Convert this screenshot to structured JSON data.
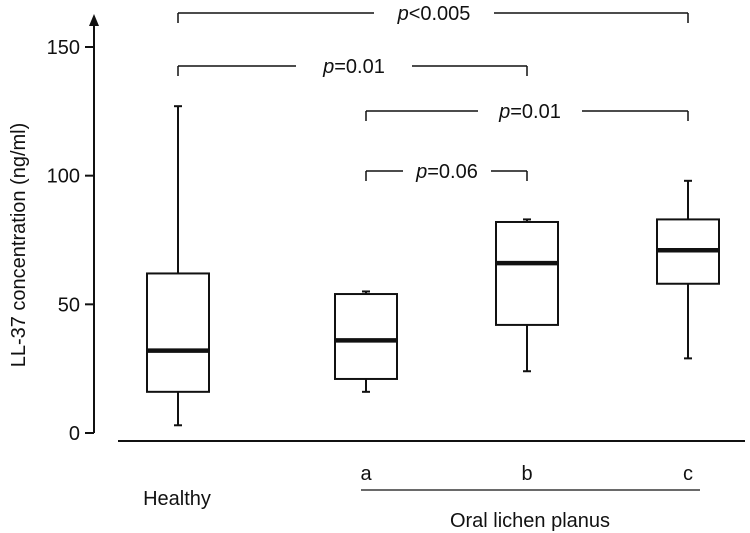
{
  "chart_data": {
    "type": "boxplot",
    "ylabel": "LL-37 concentration (ng/ml)",
    "ylim": [
      0,
      150
    ],
    "yticks": [
      0,
      50,
      100,
      150
    ],
    "group_label": "Oral lichen planus",
    "boxes": [
      {
        "label": "Healthy",
        "whisker_low": 3,
        "q1": 16,
        "median": 32,
        "q3": 62,
        "whisker_high": 127
      },
      {
        "label": "a",
        "whisker_low": 16,
        "q1": 21,
        "median": 36,
        "q3": 54,
        "whisker_high": 55
      },
      {
        "label": "b",
        "whisker_low": 24,
        "q1": 42,
        "median": 66,
        "q3": 82,
        "whisker_high": 83
      },
      {
        "label": "c",
        "whisker_low": 29,
        "q1": 58,
        "median": 71,
        "q3": 83,
        "whisker_high": 98
      }
    ],
    "comparisons": [
      {
        "from": 0,
        "to": 3,
        "p_symbol": "p",
        "p_rest": "<0.005"
      },
      {
        "from": 0,
        "to": 2,
        "p_symbol": "p",
        "p_rest": "=0.01"
      },
      {
        "from": 1,
        "to": 3,
        "p_symbol": "p",
        "p_rest": "=0.01"
      },
      {
        "from": 1,
        "to": 2,
        "p_symbol": "p",
        "p_rest": "=0.06"
      }
    ],
    "colors": {
      "line": "#111111",
      "background": "#ffffff"
    }
  }
}
